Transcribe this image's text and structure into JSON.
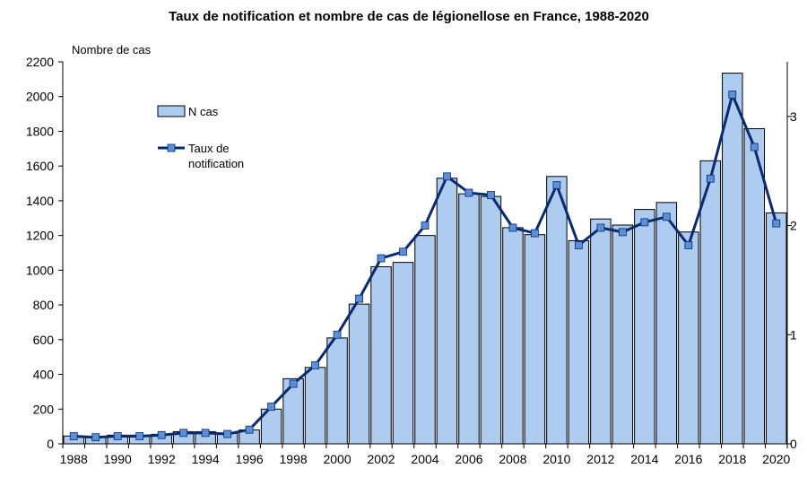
{
  "chart_data": {
    "type": "bar",
    "title": "Taux de notification et nombre de cas de légionellose en France, 1988-2020",
    "ylabel": "Nombre de cas",
    "ylim": [
      0,
      2200
    ],
    "y_ticks": [
      "0",
      "200",
      "400",
      "600",
      "800",
      "1000",
      "1200",
      "1400",
      "1600",
      "1800",
      "2000",
      "2200"
    ],
    "y2lim": [
      0,
      3.5
    ],
    "y2_ticks": [
      "0",
      "1",
      "2",
      "3"
    ],
    "x_tick_labels": [
      "1988",
      "1990",
      "1992",
      "1994",
      "1996",
      "1998",
      "2000",
      "2002",
      "2004",
      "2006",
      "2008",
      "2010",
      "2012",
      "2014",
      "2016",
      "2018",
      "2020"
    ],
    "categories": [
      "1988",
      "1989",
      "1990",
      "1991",
      "1992",
      "1993",
      "1994",
      "1995",
      "1996",
      "1997",
      "1998",
      "1999",
      "2000",
      "2001",
      "2002",
      "2003",
      "2004",
      "2005",
      "2006",
      "2007",
      "2008",
      "2009",
      "2010",
      "2011",
      "2012",
      "2013",
      "2014",
      "2015",
      "2016",
      "2017",
      "2018",
      "2019",
      "2020"
    ],
    "series": [
      {
        "name": "N cas",
        "type": "bar",
        "axis": "left",
        "color": "#aecbf0",
        "values": [
          45,
          40,
          50,
          50,
          55,
          70,
          70,
          60,
          80,
          200,
          375,
          440,
          610,
          805,
          1020,
          1045,
          1200,
          1530,
          1440,
          1425,
          1245,
          1205,
          1540,
          1170,
          1295,
          1260,
          1350,
          1390,
          1220,
          1630,
          2135,
          1815,
          1330
        ]
      },
      {
        "name": "Taux de notification",
        "type": "line",
        "axis": "right",
        "color": "#0a2a6e",
        "marker_color": "#5b8fd8",
        "values": [
          0.07,
          0.06,
          0.07,
          0.07,
          0.08,
          0.1,
          0.1,
          0.09,
          0.13,
          0.34,
          0.55,
          0.72,
          1.0,
          1.33,
          1.7,
          1.76,
          2.0,
          2.45,
          2.3,
          2.28,
          1.98,
          1.93,
          2.37,
          1.82,
          1.98,
          1.94,
          2.03,
          2.08,
          1.82,
          2.43,
          3.2,
          2.72,
          2.02
        ]
      }
    ],
    "legend": {
      "position": "top-left",
      "bar_label": "N cas",
      "line_label_1": "Taux de",
      "line_label_2": "notification"
    },
    "grid": false
  }
}
